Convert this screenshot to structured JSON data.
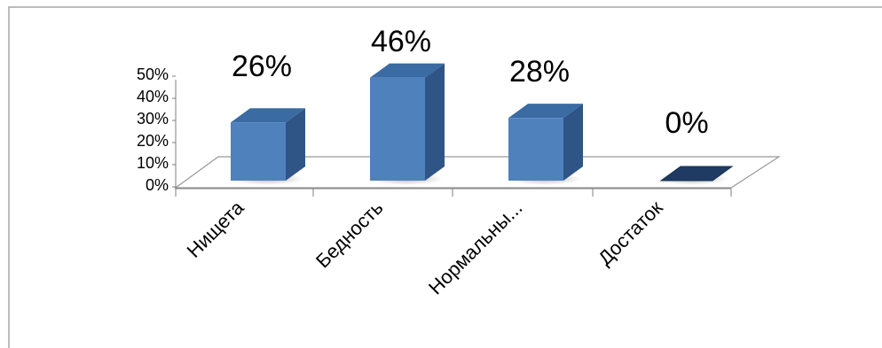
{
  "chart_data": {
    "type": "bar",
    "title": "",
    "xlabel": "",
    "ylabel": "",
    "categories": [
      "Нищета",
      "Бедность",
      "Нормальны...",
      "Достаток"
    ],
    "values": [
      26,
      46,
      28,
      0
    ],
    "data_labels": [
      "26%",
      "46%",
      "28%",
      "0%"
    ],
    "y_ticks": [
      "0%",
      "10%",
      "20%",
      "30%",
      "40%",
      "50%"
    ],
    "y_tick_values": [
      0,
      10,
      20,
      30,
      40,
      50
    ],
    "ylim": [
      0,
      50
    ],
    "grid": false,
    "legend": "none",
    "style": "3d-column"
  },
  "colors": {
    "bar_front": "#4F81BD",
    "bar_side": "#2E5586",
    "bar_top": "#3A6BA3",
    "zero_bar": "#1F3B63",
    "floor_stroke": "#999999",
    "axis": "#7f7f7f",
    "frame": "#a6a6a6",
    "text": "#000000"
  }
}
